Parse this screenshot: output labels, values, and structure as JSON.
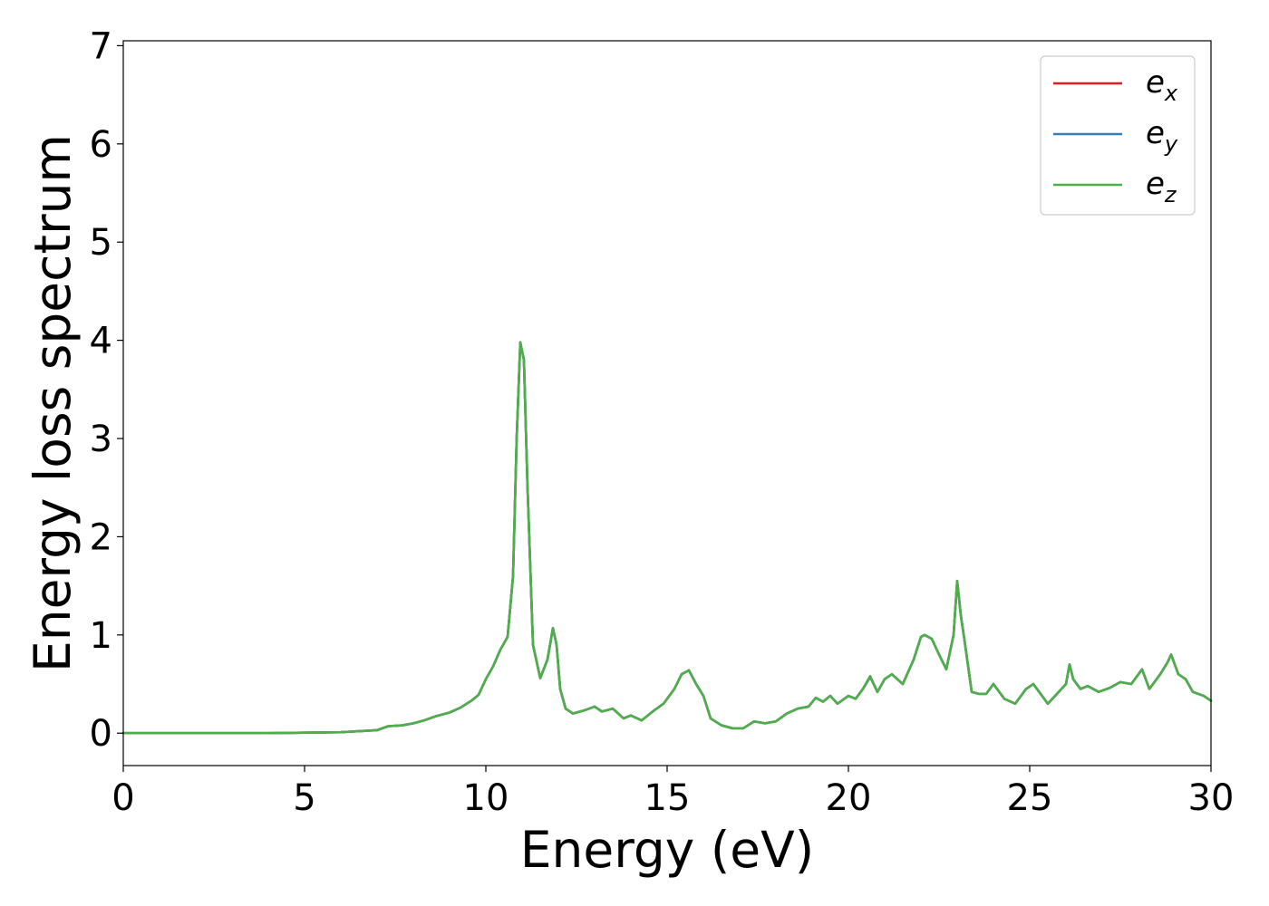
{
  "chart_data": {
    "type": "line",
    "title": "",
    "xlabel": "Energy (eV)",
    "ylabel": "Energy loss spectrum",
    "xlim": [
      0,
      30
    ],
    "ylim": [
      -0.33,
      7.05
    ],
    "xticks": [
      "0",
      "5",
      "10",
      "15",
      "20",
      "25",
      "30"
    ],
    "yticks": [
      "0",
      "1",
      "2",
      "3",
      "4",
      "5",
      "6",
      "7"
    ],
    "grid": false,
    "legend_position": "top-right",
    "series": [
      {
        "name": "e_x",
        "legend_base": "e",
        "legend_sub": "x",
        "color": "#e41a1c",
        "x": [
          0,
          2,
          4,
          6,
          6.5,
          7,
          7.3,
          7.7,
          8,
          8.3,
          8.6,
          9.0,
          9.3,
          9.6,
          9.8,
          10.0,
          10.2,
          10.4,
          10.6,
          10.75,
          10.85,
          10.95,
          11.05,
          11.15,
          11.3,
          11.5,
          11.7,
          11.85,
          11.95,
          12.05,
          12.2,
          12.4,
          12.7,
          13.0,
          13.2,
          13.5,
          13.8,
          14.0,
          14.3,
          14.6,
          14.9,
          15.2,
          15.4,
          15.6,
          15.8,
          16.0,
          16.2,
          16.5,
          16.8,
          17.1,
          17.4,
          17.7,
          18.0,
          18.3,
          18.6,
          18.9,
          19.1,
          19.3,
          19.5,
          19.7,
          20.0,
          20.2,
          20.4,
          20.6,
          20.8,
          21.0,
          21.2,
          21.5,
          21.8,
          22.0,
          22.1,
          22.3,
          22.5,
          22.7,
          22.9,
          23.0,
          23.1,
          23.2,
          23.4,
          23.6,
          23.8,
          24.0,
          24.1,
          24.3,
          24.6,
          24.9,
          25.1,
          25.3,
          25.5,
          25.8,
          26.0,
          26.1,
          26.2,
          26.4,
          26.6,
          26.9,
          27.2,
          27.5,
          27.8,
          28.0,
          28.1,
          28.3,
          28.6,
          28.8,
          28.9,
          29.1,
          29.3,
          29.5,
          29.8,
          30.0
        ],
        "y": [
          0.0,
          0.0,
          0.0,
          0.01,
          0.02,
          0.03,
          0.07,
          0.08,
          0.1,
          0.13,
          0.17,
          0.21,
          0.26,
          0.33,
          0.39,
          0.55,
          0.68,
          0.85,
          0.98,
          1.6,
          3.0,
          3.98,
          3.8,
          2.5,
          0.9,
          0.56,
          0.75,
          1.07,
          0.9,
          0.45,
          0.25,
          0.2,
          0.23,
          0.27,
          0.22,
          0.25,
          0.15,
          0.18,
          0.13,
          0.22,
          0.3,
          0.45,
          0.6,
          0.64,
          0.5,
          0.38,
          0.15,
          0.08,
          0.05,
          0.05,
          0.12,
          0.1,
          0.12,
          0.2,
          0.25,
          0.27,
          0.36,
          0.32,
          0.38,
          0.3,
          0.38,
          0.35,
          0.45,
          0.58,
          0.42,
          0.55,
          0.6,
          0.5,
          0.75,
          0.98,
          1.0,
          0.96,
          0.8,
          0.65,
          1.0,
          1.55,
          1.2,
          0.95,
          0.42,
          0.4,
          0.4,
          0.5,
          0.45,
          0.35,
          0.3,
          0.45,
          0.5,
          0.4,
          0.3,
          0.42,
          0.5,
          0.7,
          0.55,
          0.45,
          0.48,
          0.42,
          0.46,
          0.52,
          0.5,
          0.6,
          0.65,
          0.45,
          0.6,
          0.72,
          0.8,
          0.6,
          0.55,
          0.42,
          0.38,
          0.33
        ]
      },
      {
        "name": "e_y",
        "legend_base": "e",
        "legend_sub": "y",
        "color": "#377eb8",
        "x": [
          0,
          2,
          4,
          6,
          6.5,
          7,
          7.3,
          7.7,
          8,
          8.3,
          8.6,
          9.0,
          9.3,
          9.6,
          9.8,
          10.0,
          10.2,
          10.4,
          10.6,
          10.75,
          10.85,
          10.95,
          11.05,
          11.15,
          11.3,
          11.5,
          11.7,
          11.85,
          11.95,
          12.05,
          12.2,
          12.4,
          12.7,
          13.0,
          13.2,
          13.5,
          13.8,
          14.0,
          14.3,
          14.6,
          14.9,
          15.2,
          15.4,
          15.6,
          15.8,
          16.0,
          16.2,
          16.5,
          16.8,
          17.1,
          17.4,
          17.7,
          18.0,
          18.3,
          18.6,
          18.9,
          19.1,
          19.3,
          19.5,
          19.7,
          20.0,
          20.2,
          20.4,
          20.6,
          20.8,
          21.0,
          21.2,
          21.5,
          21.8,
          22.0,
          22.1,
          22.3,
          22.5,
          22.7,
          22.9,
          23.0,
          23.1,
          23.2,
          23.4,
          23.6,
          23.8,
          24.0,
          24.1,
          24.3,
          24.6,
          24.9,
          25.1,
          25.3,
          25.5,
          25.8,
          26.0,
          26.1,
          26.2,
          26.4,
          26.6,
          26.9,
          27.2,
          27.5,
          27.8,
          28.0,
          28.1,
          28.3,
          28.6,
          28.8,
          28.9,
          29.1,
          29.3,
          29.5,
          29.8,
          30.0
        ],
        "y": [
          0.0,
          0.0,
          0.0,
          0.01,
          0.02,
          0.03,
          0.07,
          0.08,
          0.1,
          0.13,
          0.17,
          0.21,
          0.26,
          0.33,
          0.39,
          0.55,
          0.68,
          0.85,
          0.98,
          1.6,
          3.0,
          3.98,
          3.8,
          2.5,
          0.9,
          0.56,
          0.75,
          1.07,
          0.9,
          0.45,
          0.25,
          0.2,
          0.23,
          0.27,
          0.22,
          0.25,
          0.15,
          0.18,
          0.13,
          0.22,
          0.3,
          0.45,
          0.6,
          0.64,
          0.5,
          0.38,
          0.15,
          0.08,
          0.05,
          0.05,
          0.12,
          0.1,
          0.12,
          0.2,
          0.25,
          0.27,
          0.36,
          0.32,
          0.38,
          0.3,
          0.38,
          0.35,
          0.45,
          0.57,
          0.42,
          0.55,
          0.6,
          0.5,
          0.75,
          0.98,
          1.0,
          0.96,
          0.8,
          0.65,
          1.0,
          1.55,
          1.2,
          0.95,
          0.42,
          0.4,
          0.4,
          0.5,
          0.45,
          0.35,
          0.3,
          0.45,
          0.5,
          0.4,
          0.3,
          0.42,
          0.5,
          0.7,
          0.55,
          0.45,
          0.48,
          0.42,
          0.46,
          0.52,
          0.5,
          0.6,
          0.65,
          0.45,
          0.6,
          0.72,
          0.8,
          0.6,
          0.55,
          0.42,
          0.38,
          0.33
        ]
      },
      {
        "name": "e_z",
        "legend_base": "e",
        "legend_sub": "z",
        "color": "#4daf4a",
        "x": [
          0,
          2,
          4,
          6,
          6.5,
          7,
          7.3,
          7.7,
          8,
          8.3,
          8.6,
          9.0,
          9.3,
          9.6,
          9.8,
          10.0,
          10.2,
          10.4,
          10.6,
          10.75,
          10.85,
          10.95,
          11.05,
          11.15,
          11.3,
          11.5,
          11.7,
          11.85,
          11.95,
          12.05,
          12.2,
          12.4,
          12.7,
          13.0,
          13.2,
          13.5,
          13.8,
          14.0,
          14.3,
          14.6,
          14.9,
          15.2,
          15.4,
          15.6,
          15.8,
          16.0,
          16.2,
          16.5,
          16.8,
          17.1,
          17.4,
          17.7,
          18.0,
          18.3,
          18.6,
          18.9,
          19.1,
          19.3,
          19.5,
          19.7,
          20.0,
          20.2,
          20.4,
          20.6,
          20.8,
          21.0,
          21.2,
          21.5,
          21.8,
          22.0,
          22.1,
          22.3,
          22.5,
          22.7,
          22.9,
          23.0,
          23.1,
          23.2,
          23.4,
          23.6,
          23.8,
          24.0,
          24.1,
          24.3,
          24.6,
          24.9,
          25.1,
          25.3,
          25.5,
          25.8,
          26.0,
          26.1,
          26.2,
          26.4,
          26.6,
          26.9,
          27.2,
          27.5,
          27.8,
          28.0,
          28.1,
          28.3,
          28.6,
          28.8,
          28.9,
          29.1,
          29.3,
          29.5,
          29.8,
          30.0
        ],
        "y": [
          0.0,
          0.0,
          0.0,
          0.01,
          0.02,
          0.03,
          0.07,
          0.08,
          0.1,
          0.13,
          0.17,
          0.21,
          0.26,
          0.33,
          0.39,
          0.55,
          0.68,
          0.85,
          0.98,
          1.6,
          3.0,
          3.98,
          3.8,
          2.5,
          0.9,
          0.56,
          0.75,
          1.07,
          0.9,
          0.45,
          0.25,
          0.2,
          0.23,
          0.27,
          0.22,
          0.25,
          0.15,
          0.18,
          0.13,
          0.22,
          0.3,
          0.45,
          0.6,
          0.64,
          0.5,
          0.38,
          0.15,
          0.08,
          0.05,
          0.05,
          0.12,
          0.1,
          0.12,
          0.2,
          0.25,
          0.27,
          0.36,
          0.32,
          0.38,
          0.3,
          0.38,
          0.35,
          0.45,
          0.58,
          0.42,
          0.55,
          0.6,
          0.5,
          0.75,
          0.98,
          1.0,
          0.96,
          0.8,
          0.65,
          1.0,
          1.55,
          1.2,
          0.95,
          0.42,
          0.4,
          0.4,
          0.5,
          0.45,
          0.35,
          0.3,
          0.45,
          0.5,
          0.4,
          0.3,
          0.42,
          0.5,
          0.7,
          0.55,
          0.45,
          0.48,
          0.42,
          0.46,
          0.52,
          0.5,
          0.6,
          0.65,
          0.45,
          0.6,
          0.72,
          0.8,
          0.6,
          0.55,
          0.42,
          0.38,
          0.33
        ]
      }
    ]
  }
}
